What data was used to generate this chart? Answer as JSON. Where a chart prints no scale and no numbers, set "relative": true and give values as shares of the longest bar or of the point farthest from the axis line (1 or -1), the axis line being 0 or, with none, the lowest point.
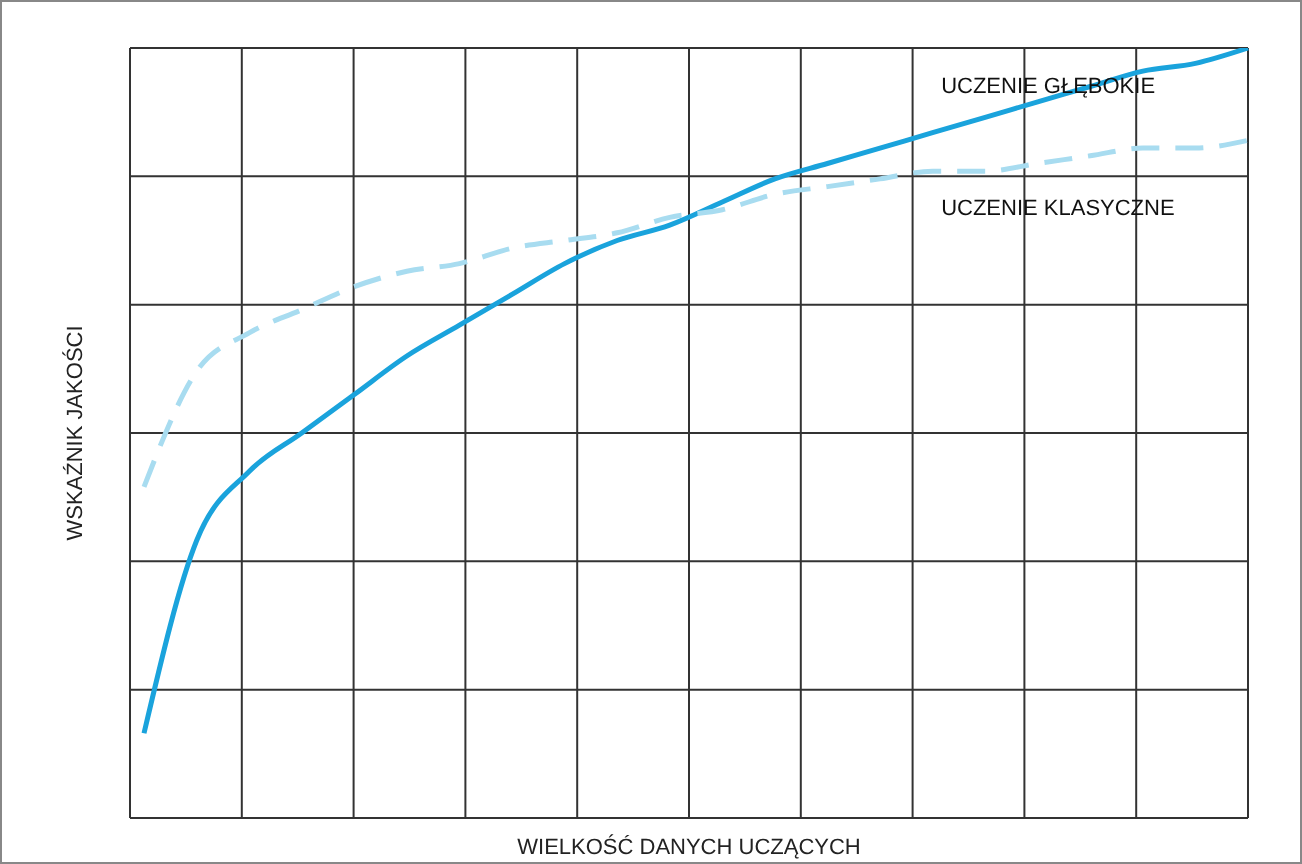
{
  "chart_data": {
    "type": "line",
    "relative": true,
    "xlabel": "WIELKOŚĆ DANYCH UCZĄCYCH",
    "ylabel": "WSKAŹNIK JAKOŚCI",
    "grid": true,
    "marker": "none",
    "categories": [
      null,
      null,
      null,
      null,
      null,
      null,
      null,
      null,
      null,
      null,
      null,
      null,
      null,
      null,
      null,
      null,
      null,
      null,
      null,
      null,
      null,
      null
    ],
    "series": [
      {
        "name": "UCZENIE GŁĘBOKIE",
        "color": "#1aa3dc",
        "line_style": "solid",
        "values": [
          0.11,
          0.36,
          0.45,
          0.5,
          0.55,
          0.6,
          0.64,
          0.68,
          0.72,
          0.75,
          0.77,
          0.8,
          0.83,
          0.85,
          0.87,
          0.89,
          0.91,
          0.93,
          0.95,
          0.97,
          0.98,
          1
        ]
      },
      {
        "name": "UCZENIE KLASYCZNE",
        "color": "#a8dcf0",
        "line_style": "dashed",
        "values": [
          0.43,
          0.58,
          0.63,
          0.66,
          0.69,
          0.71,
          0.72,
          0.74,
          0.75,
          0.76,
          0.78,
          0.79,
          0.81,
          0.82,
          0.83,
          0.84,
          0.84,
          0.85,
          0.86,
          0.87,
          0.87,
          0.88
        ]
      }
    ]
  }
}
